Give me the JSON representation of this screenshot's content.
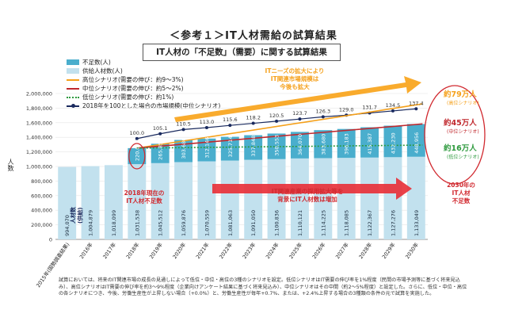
{
  "page": {
    "title": "＜参考１＞IT人材需給の試算結果",
    "subtitle": "IT人材の「不足数」（需要）に関する試算結果",
    "ylabel": "人数"
  },
  "legend": [
    {
      "label": "不足数(人)",
      "color": "#4aaecd",
      "kind": "bar"
    },
    {
      "label": "供給人材数(人)",
      "color": "#c2e1ee",
      "kind": "bar"
    },
    {
      "label": "高位シナリオ(需要の伸び：約9～3%)",
      "color": "#f5a01a",
      "kind": "line"
    },
    {
      "label": "中位シナリオ(需要の伸び：約5～2%)",
      "color": "#c0282d",
      "kind": "line"
    },
    {
      "label": "低位シナリオ(需要の伸び：約1%)",
      "color": "#2e9a3e",
      "kind": "dotted"
    },
    {
      "label": "2018年を100とした場合の市場規模(中位シナリオ)",
      "color": "#1a2a5e",
      "kind": "marker"
    }
  ],
  "chart_data": {
    "type": "bar",
    "categories": [
      "2015年(国勢調査結果)",
      "2016年",
      "2017年",
      "2018年",
      "2019年",
      "2020年",
      "2021年",
      "2022年",
      "2023年",
      "2024年",
      "2025年",
      "2026年",
      "2027年",
      "2028年",
      "2029年",
      "2030年"
    ],
    "ylim": [
      0,
      2000000
    ],
    "yticks": [
      "0",
      "200,000",
      "400,000",
      "600,000",
      "800,000",
      "1,000,000",
      "1,200,000",
      "1,400,000",
      "1,600,000",
      "1,800,000",
      "2,000,000"
    ],
    "series": [
      {
        "name": "供給人材数(人)",
        "values": [
          994070,
          1004879,
          1018099,
          1031538,
          1045512,
          1059876,
          1070559,
          1081063,
          1091050,
          1100836,
          1110121,
          1114225,
          1118085,
          1122367,
          1127276,
          1133049
        ]
      },
      {
        "name": "不足数(人)",
        "values": [
          null,
          null,
          null,
          220000,
          265855,
          303680,
          312146,
          325714,
          337848,
          350553,
          364070,
          383680,
          396183,
          415387,
          432230,
          448956
        ]
      }
    ],
    "index_labels": [
      "100.0",
      "105.1",
      "110.5",
      "113.0",
      "115.6",
      "118.2",
      "120.5",
      "123.7",
      "126.3",
      "129.0",
      "131.7",
      "134.5",
      "137.4"
    ],
    "annotations": {
      "bottom_labels": [
        "人材数",
        "(供給)"
      ],
      "top_arrow": [
        "ITニーズの拡大により",
        "IT関連市場規模は",
        "今後も拡大"
      ],
      "mid_arrow": [
        "IT関連産業の採用拡大等を",
        "背景にIT人材数は増加"
      ],
      "callout_2018": [
        "2018年現在の",
        "IT人材不足数"
      ],
      "callout_2030": [
        "2030年の",
        "IT人材",
        "不足数"
      ],
      "high": {
        "value": "約79万人",
        "sub": "(高位シナリオ)"
      },
      "mid": {
        "value": "約45万人",
        "sub": "(中位シナリオ)"
      },
      "low": {
        "value": "約16万人",
        "sub": "(低位シナリオ)"
      }
    }
  },
  "note": "試算においては、将来のIT関連市場の成長の見通しによって低位・中位・高位の3種のシナリオを設定。低位シナリオはIT需要の伸び率を1%程度（民間の市場予測等に基づく将来見込み）、高位シナリオはIT需要の伸び率を約3～9%程度（企業向けアンケート結果に基づく将来見込み）、中位シナリオはその中間（約2～5%程度）と設定した。さらに、低位・中位・高位の各シナリオにつき、今後、労働生産性が上昇しない場合（+0.0%）と、労働生産性が毎年+0.7%、または、+2.4%上昇する場合の3種類の条件の元で試算を実施した。"
}
